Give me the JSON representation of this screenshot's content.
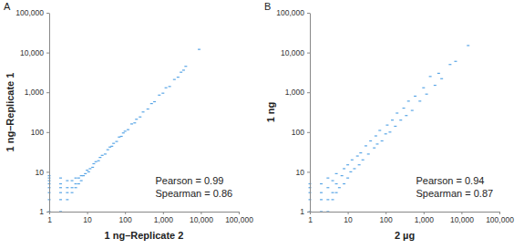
{
  "chart_data": [
    {
      "type": "scatter",
      "title": "A",
      "x_label": "1 ng–Replicate 2",
      "y_label": "1 ng–Replicate 1",
      "annotations": [
        "Pearson = 0.99",
        "Spearman = 0.86"
      ],
      "color": "#5aa6e6",
      "log": true,
      "xlim": [
        1,
        100000
      ],
      "ylim": [
        1,
        100000
      ],
      "xticks": [
        1,
        10,
        100,
        {
          "value": 1000,
          "label": "1,000"
        },
        {
          "value": 10000,
          "label": "10,000"
        },
        {
          "value": 100000,
          "label": "100,000"
        }
      ],
      "yticks": [
        1,
        10,
        100,
        {
          "value": 1000,
          "label": "1,000"
        },
        {
          "value": 10000,
          "label": "10,000"
        },
        {
          "value": 100000,
          "label": "100,000"
        }
      ],
      "x": [
        1,
        1,
        1,
        1,
        1,
        1,
        1,
        1,
        2,
        2,
        2,
        2,
        2,
        2,
        3,
        3,
        3,
        3,
        4,
        4,
        4,
        5,
        5,
        5,
        6,
        6,
        7,
        7,
        8,
        9,
        10,
        11,
        12,
        14,
        15,
        17,
        20,
        22,
        25,
        30,
        35,
        40,
        45,
        50,
        60,
        70,
        80,
        90,
        100,
        120,
        150,
        180,
        200,
        250,
        300,
        400,
        500,
        600,
        800,
        1000,
        1200,
        1500,
        2000,
        2500,
        3000,
        3500,
        4000,
        9000
      ],
      "values": [
        1,
        2,
        3,
        4,
        5,
        6,
        7,
        8,
        1,
        2,
        3,
        4,
        5,
        7,
        2,
        3,
        4,
        6,
        3,
        4,
        6,
        4,
        5,
        7,
        5,
        7,
        6,
        8,
        8,
        9,
        11,
        10,
        12,
        13,
        16,
        18,
        19,
        23,
        26,
        28,
        36,
        42,
        44,
        52,
        58,
        75,
        78,
        95,
        105,
        115,
        160,
        170,
        210,
        240,
        320,
        380,
        520,
        580,
        850,
        950,
        1300,
        1400,
        2100,
        2400,
        3200,
        3600,
        4500,
        12000
      ]
    },
    {
      "type": "scatter",
      "title": "B",
      "x_label": "2 µg",
      "y_label": "1 ng",
      "annotations": [
        "Pearson = 0.94",
        "Spearman = 0.87"
      ],
      "color": "#5aa6e6",
      "log": true,
      "xlim": [
        1,
        100000
      ],
      "ylim": [
        1,
        100000
      ],
      "xticks": [
        1,
        10,
        100,
        {
          "value": 1000,
          "label": "1,000"
        },
        {
          "value": 10000,
          "label": "10,000"
        },
        {
          "value": 100000,
          "label": "100,000"
        }
      ],
      "yticks": [
        1,
        10,
        100,
        {
          "value": 1000,
          "label": "1,000"
        },
        {
          "value": 10000,
          "label": "10,000"
        },
        {
          "value": 100000,
          "label": "100,000"
        }
      ],
      "x": [
        1,
        1,
        1,
        1,
        1,
        2,
        2,
        2,
        2,
        3,
        3,
        3,
        3,
        4,
        4,
        4,
        5,
        5,
        5,
        6,
        7,
        8,
        8,
        10,
        10,
        12,
        13,
        15,
        18,
        20,
        22,
        25,
        30,
        35,
        40,
        50,
        55,
        60,
        70,
        80,
        100,
        110,
        130,
        150,
        180,
        200,
        250,
        300,
        350,
        400,
        500,
        600,
        800,
        1000,
        1200,
        1500,
        2000,
        2500,
        3000,
        5000,
        7000,
        15000
      ],
      "values": [
        1,
        2,
        3,
        4,
        5,
        1,
        2,
        3,
        5,
        1,
        2,
        4,
        7,
        2,
        3,
        6,
        3,
        5,
        9,
        4,
        8,
        5,
        12,
        7,
        15,
        10,
        20,
        12,
        25,
        15,
        30,
        20,
        45,
        28,
        60,
        40,
        80,
        50,
        110,
        60,
        90,
        150,
        100,
        200,
        140,
        300,
        200,
        400,
        260,
        600,
        350,
        800,
        600,
        1300,
        900,
        2500,
        1500,
        3000,
        2200,
        5000,
        6000,
        15000
      ]
    }
  ]
}
